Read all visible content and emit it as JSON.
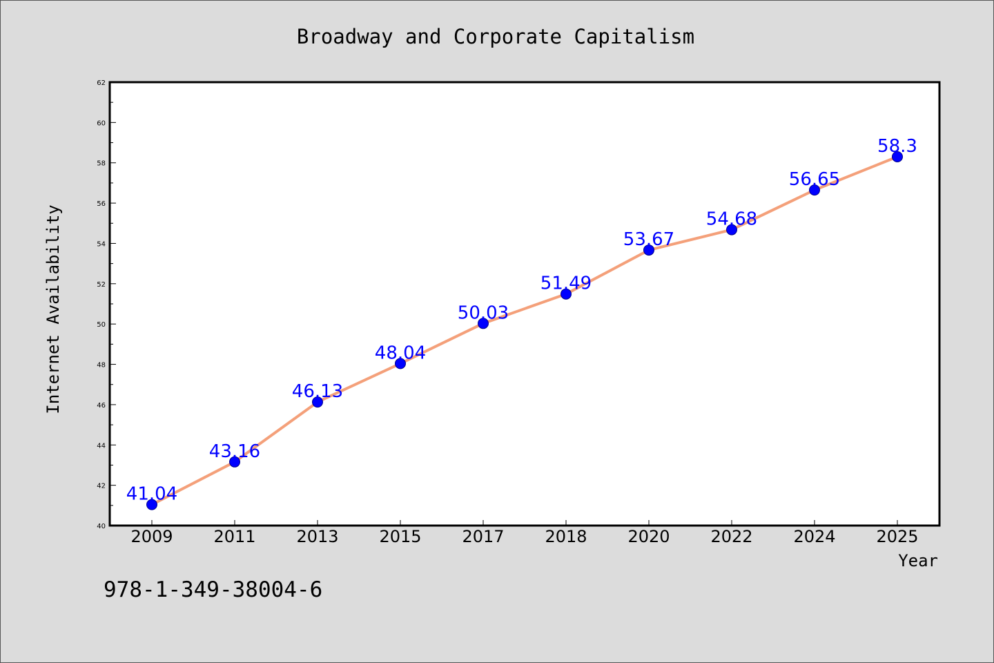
{
  "chart_data": {
    "type": "line",
    "title": "Broadway and Corporate Capitalism",
    "xlabel": "Year",
    "ylabel": "Internet Availability",
    "categories": [
      "2009",
      "2011",
      "2013",
      "2015",
      "2017",
      "2018",
      "2020",
      "2022",
      "2024",
      "2025"
    ],
    "series": [
      {
        "values": [
          41.04,
          43.16,
          46.13,
          48.04,
          50.03,
          51.49,
          53.67,
          54.68,
          56.65,
          58.3
        ],
        "labels": [
          "41.04",
          "43.16",
          "46.13",
          "48.04",
          "50.03",
          "51.49",
          "53.67",
          "54.68",
          "56.65",
          "58.3"
        ],
        "line_color": "#f4a07a",
        "marker_color": "#0000ff"
      }
    ],
    "ylim": [
      40,
      62
    ],
    "yticks": [
      "40",
      "42",
      "44",
      "46",
      "48",
      "50",
      "52",
      "54",
      "56",
      "58",
      "60",
      "62"
    ],
    "grid": false
  },
  "footer_text": "978-1-349-38004-6",
  "colors": {
    "background": "#dcdcdc",
    "plot_background": "#ffffff",
    "line": "#f4a07a",
    "marker": "#0000ff",
    "data_label": "#0000ff"
  }
}
